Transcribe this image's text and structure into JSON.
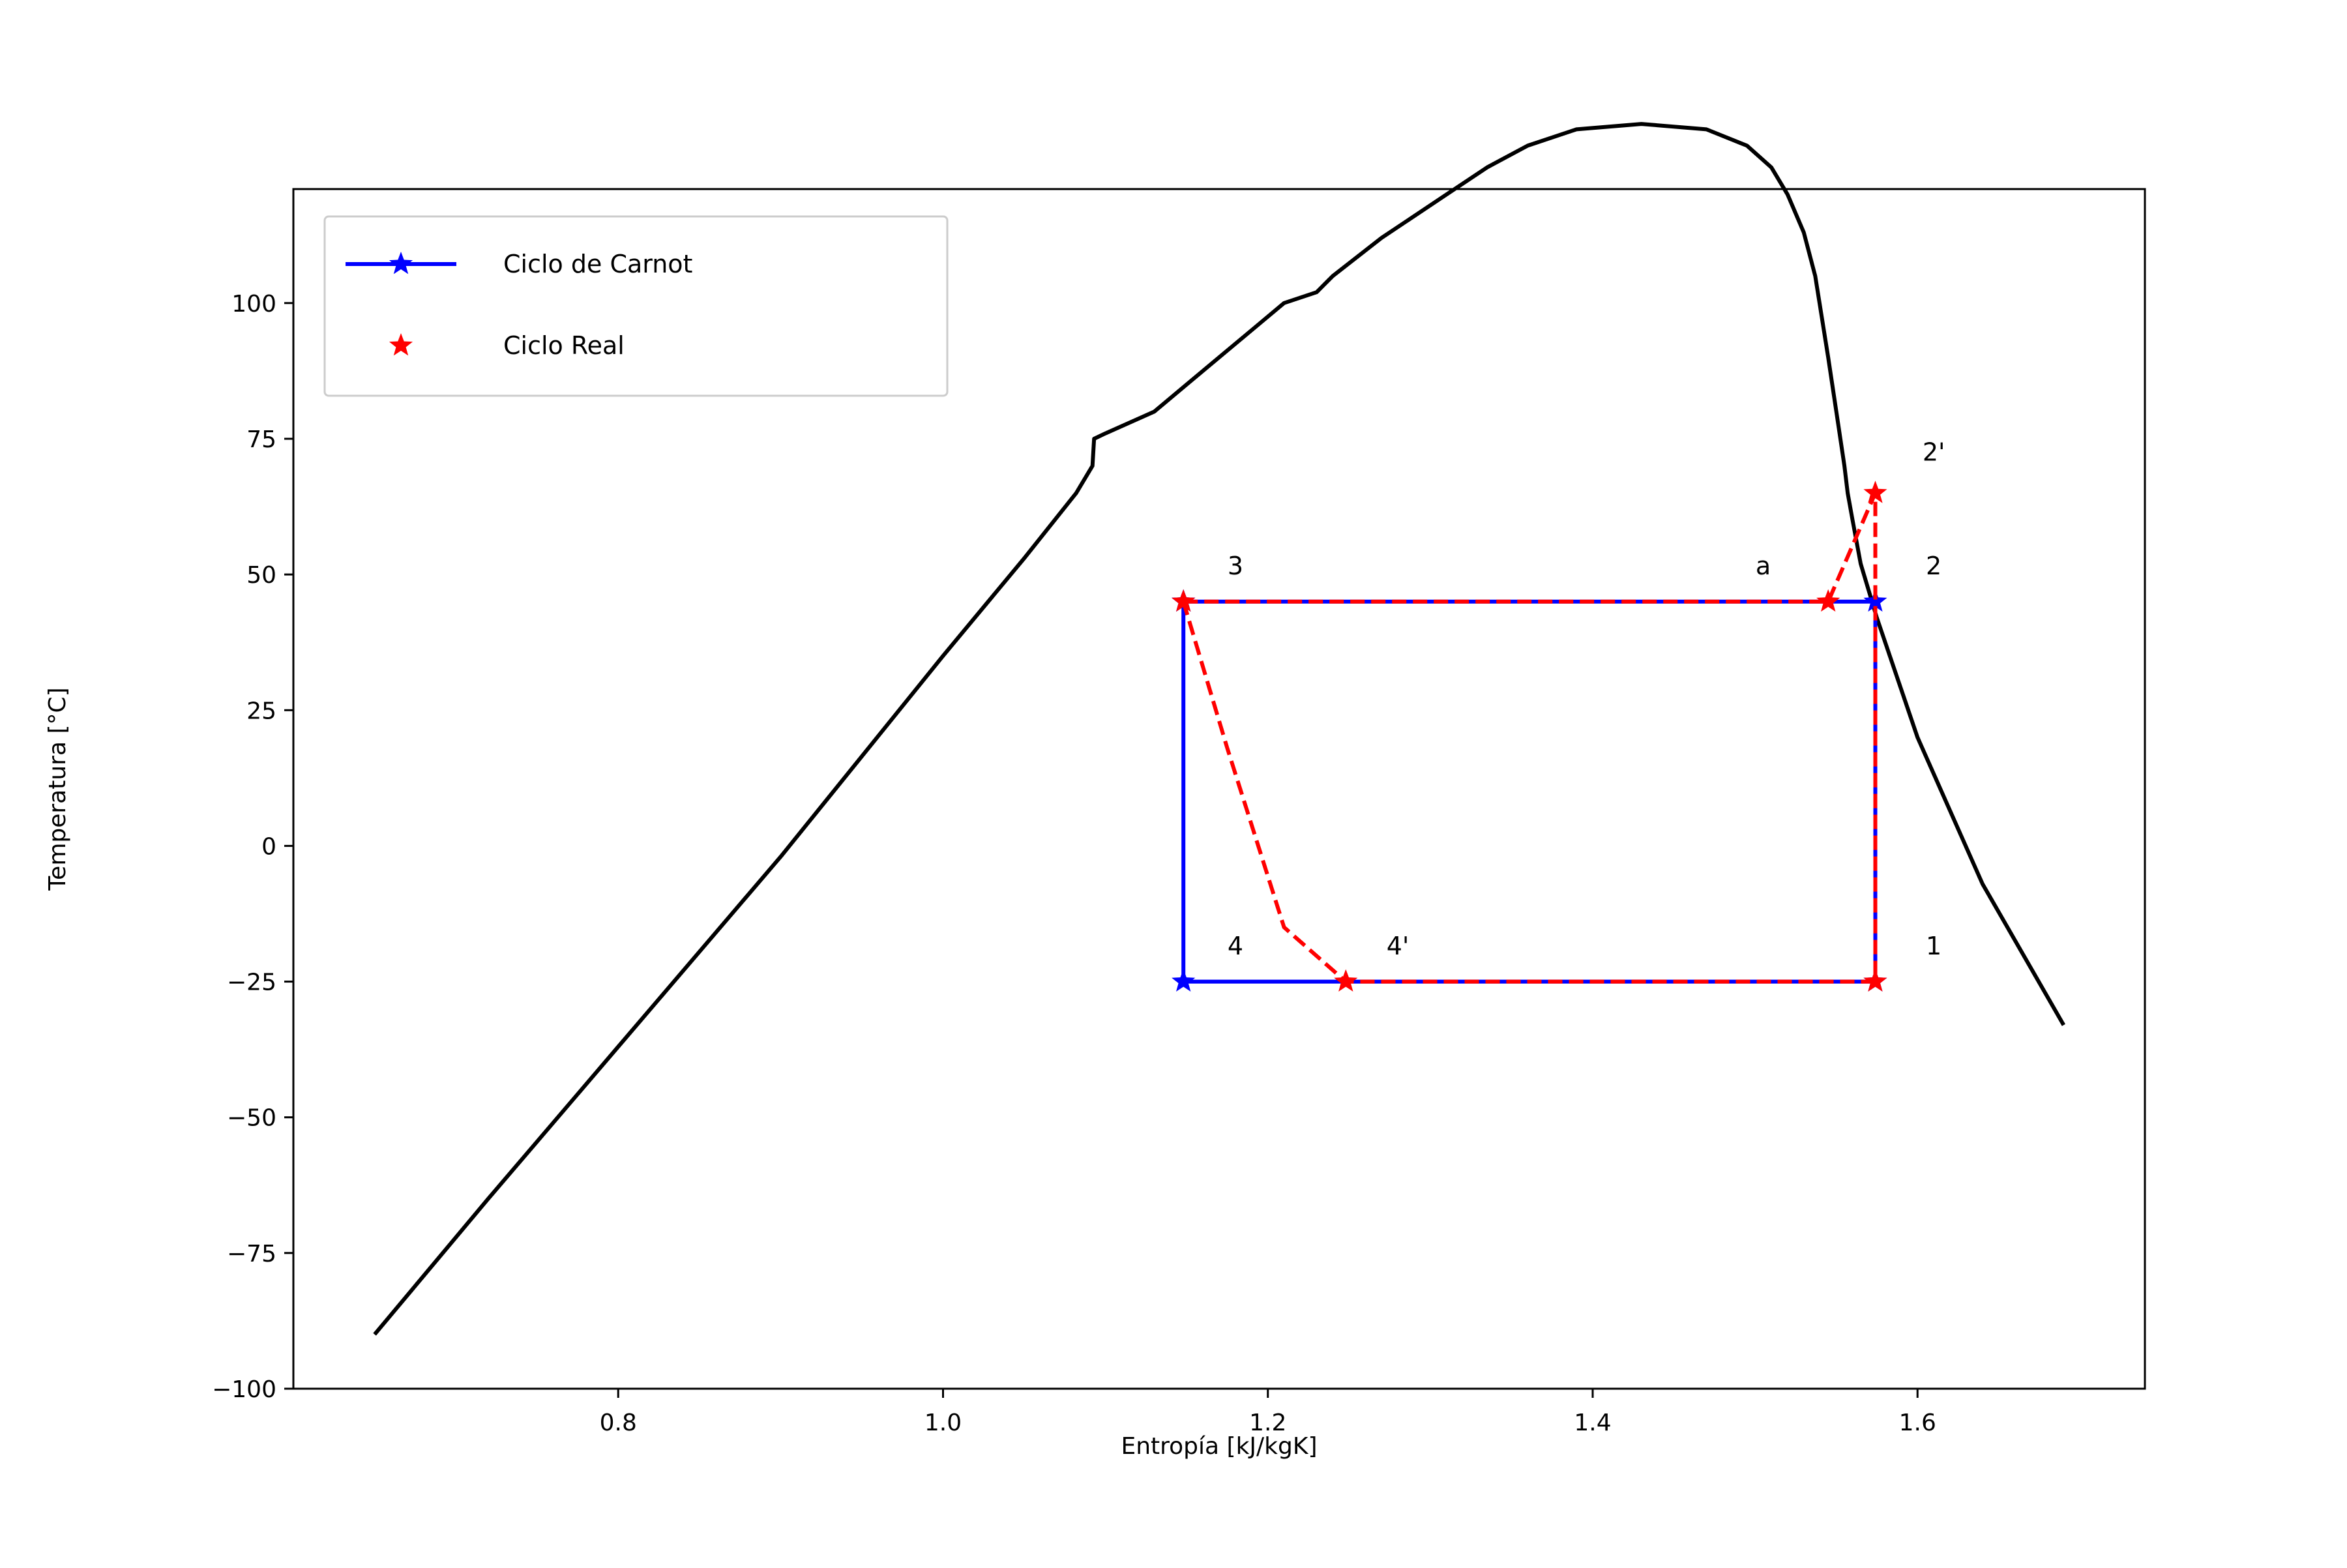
{
  "chart_data": {
    "type": "line",
    "title": "",
    "xlabel": "Entropía [kJ/kgK]",
    "ylabel": "Temperatura [°C]",
    "xlim": [
      0.6,
      1.74
    ],
    "ylim": [
      -100,
      121
    ],
    "xticks": [
      {
        "value": 0.8,
        "label": "0.8"
      },
      {
        "value": 1.0,
        "label": "1.0"
      },
      {
        "value": 1.2,
        "label": "1.2"
      },
      {
        "value": 1.4,
        "label": "1.4"
      },
      {
        "value": 1.6,
        "label": "1.6"
      }
    ],
    "yticks": [
      {
        "value": 100,
        "label": "100"
      },
      {
        "value": 75,
        "label": "75"
      },
      {
        "value": 50,
        "label": "50"
      },
      {
        "value": 25,
        "label": "25"
      },
      {
        "value": 0,
        "label": "0"
      },
      {
        "value": -25,
        "label": "−25"
      },
      {
        "value": -50,
        "label": "−50"
      },
      {
        "value": -75,
        "label": "−75"
      },
      {
        "value": -100,
        "label": "−100"
      }
    ],
    "grid": false,
    "legend_position": "top-left",
    "colors": {
      "dome": "#000000",
      "carnot": "#0000ff",
      "real": "#ff0000"
    },
    "dome": {
      "x": [
        0.65,
        0.72,
        0.8,
        0.9,
        1.0,
        1.05,
        1.082,
        1.092,
        1.093,
        1.1,
        1.13,
        1.15,
        1.17,
        1.19,
        1.21,
        1.23,
        1.24,
        1.27,
        1.31,
        1.335,
        1.36,
        1.39,
        1.43,
        1.47,
        1.495,
        1.51,
        1.52,
        1.53,
        1.537,
        1.545,
        1.55,
        1.555,
        1.557,
        1.56,
        1.565,
        1.575,
        1.6,
        1.64,
        1.69
      ],
      "y": [
        -90,
        -65,
        -37,
        -2,
        35,
        53,
        65,
        70,
        75,
        76,
        80,
        85,
        90,
        95,
        100,
        102,
        105,
        112,
        120,
        125,
        129,
        132,
        133,
        132,
        129,
        125,
        120,
        113,
        105,
        90,
        80,
        70,
        65,
        60,
        52,
        42,
        20,
        -7,
        -33
      ]
    },
    "series": [
      {
        "name": "Ciclo de Carnot",
        "x": [
          1.148,
          1.574,
          1.574,
          1.148,
          1.148
        ],
        "y": [
          45,
          45,
          -25,
          -25,
          45
        ]
      },
      {
        "name": "Ciclo Real",
        "x": [
          1.148,
          1.545,
          1.574,
          1.574,
          1.574,
          1.248,
          1.21,
          1.175,
          1.148
        ],
        "y": [
          45,
          45,
          65,
          45,
          -25,
          -25,
          -15,
          18,
          45
        ],
        "markers_at": [
          0,
          1,
          2,
          4,
          5
        ]
      }
    ],
    "annotations": [
      {
        "text": "3",
        "x": 1.18,
        "y": 50
      },
      {
        "text": "a",
        "x": 1.505,
        "y": 50
      },
      {
        "text": "2",
        "x": 1.61,
        "y": 50
      },
      {
        "text": "2'",
        "x": 1.61,
        "y": 71
      },
      {
        "text": "4",
        "x": 1.18,
        "y": -20
      },
      {
        "text": "4'",
        "x": 1.28,
        "y": -20
      },
      {
        "text": "1",
        "x": 1.61,
        "y": -20
      }
    ]
  }
}
